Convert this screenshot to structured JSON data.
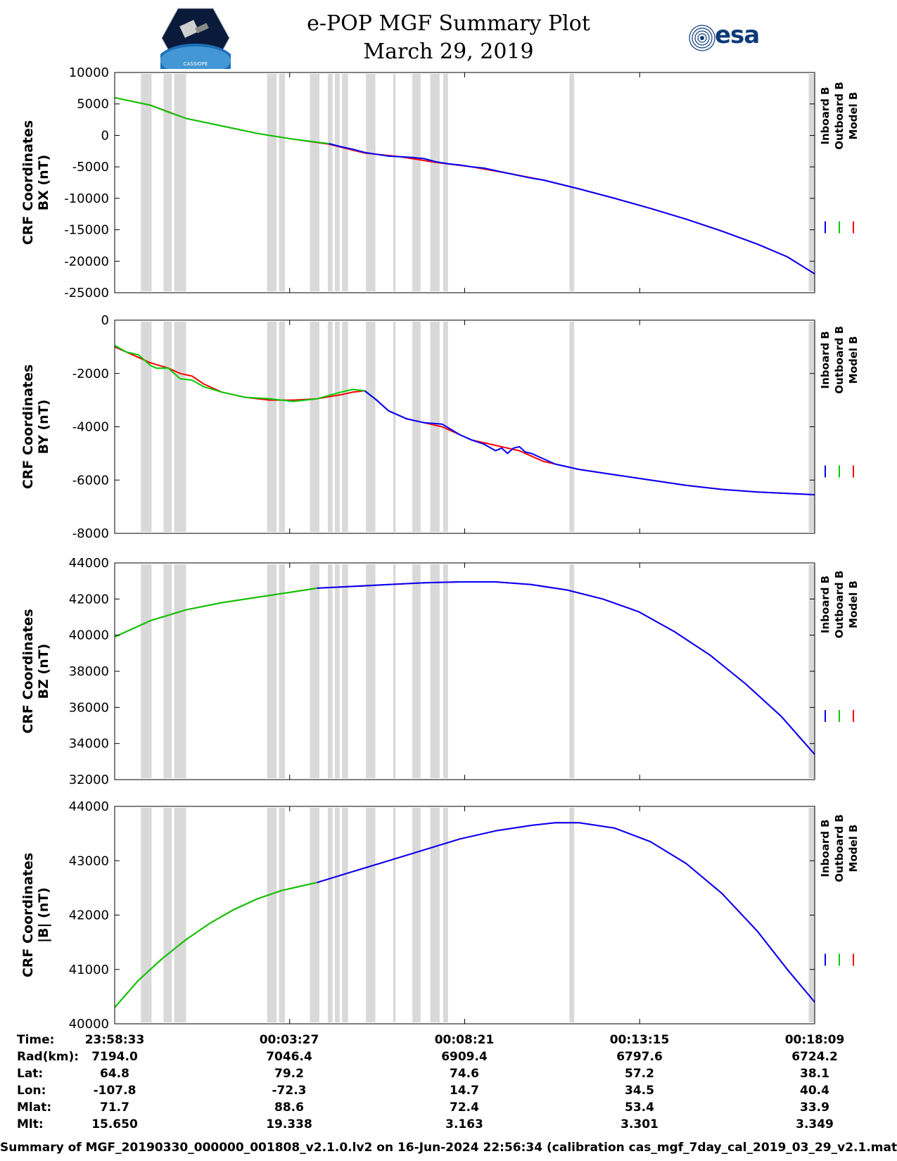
{
  "header": {
    "title_line1": "e-POP MGF Summary Plot",
    "title_line2": "March 29, 2019",
    "esa_logo_text": "esa",
    "left_logo_text": "CASSIOPE"
  },
  "colors": {
    "inboard": "#0000ff",
    "outboard": "#00cc00",
    "model": "#ff0000",
    "gap": "#d9d9d9"
  },
  "legend": {
    "inboard": "Inboard B",
    "outboard": "Outboard B",
    "model": "Model B"
  },
  "info": {
    "labels": [
      "Time:",
      "Rad(km):",
      "Lat:",
      "Lon:",
      "Mlat:",
      "Mlt:"
    ],
    "columns": [
      {
        "time": "23:58:33",
        "rad": "7194.0",
        "lat": "64.8",
        "lon": "-107.8",
        "mlat": "71.7",
        "mlt": "15.650"
      },
      {
        "time": "00:03:27",
        "rad": "7046.4",
        "lat": "79.2",
        "lon": "-72.3",
        "mlat": "88.6",
        "mlt": "19.338"
      },
      {
        "time": "00:08:21",
        "rad": "6909.4",
        "lat": "74.6",
        "lon": "14.7",
        "mlat": "72.4",
        "mlt": "3.163"
      },
      {
        "time": "00:13:15",
        "rad": "6797.6",
        "lat": "57.2",
        "lon": "34.5",
        "mlat": "53.4",
        "mlt": "3.301"
      },
      {
        "time": "00:18:09",
        "rad": "6724.2",
        "lat": "38.1",
        "lon": "40.4",
        "mlat": "33.9",
        "mlt": "3.349"
      }
    ]
  },
  "footer": "Summary of MGF_20190330_000000_001808_v2.1.0.lv2 on 16-Jun-2024 22:56:34 (calibration cas_mgf_7day_cal_2019_03_29_v2.1.mat )",
  "chart_data": [
    {
      "type": "line",
      "ylabel_line1": "CRF Coordinates",
      "ylabel_line2": "BX (nT)",
      "ylim": [
        -25000,
        10000
      ],
      "yticks": [
        -25000,
        -20000,
        -15000,
        -10000,
        -5000,
        0,
        5000,
        10000
      ],
      "xlim_sec": [
        0,
        1176
      ],
      "xticks_sec": [
        294,
        588,
        882
      ],
      "gaps_sec": [
        [
          44,
          62
        ],
        [
          82,
          96
        ],
        [
          100,
          120
        ],
        [
          256,
          272
        ],
        [
          276,
          286
        ],
        [
          328,
          344
        ],
        [
          358,
          366
        ],
        [
          370,
          378
        ],
        [
          382,
          392
        ],
        [
          422,
          438
        ],
        [
          468,
          472
        ],
        [
          500,
          514
        ],
        [
          530,
          546
        ],
        [
          552,
          560
        ],
        [
          764,
          772
        ],
        [
          1166,
          1176
        ]
      ],
      "series": [
        {
          "name": "Model B",
          "x": [
            0,
            60,
            120,
            180,
            240,
            300,
            360,
            420,
            480,
            540,
            600,
            660,
            720,
            780,
            840,
            900,
            960,
            1020,
            1080,
            1130,
            1176
          ],
          "y": [
            6000,
            4800,
            2700,
            1500,
            300,
            -600,
            -1400,
            -2800,
            -3400,
            -4300,
            -5000,
            -6000,
            -7100,
            -8500,
            -10000,
            -11600,
            -13300,
            -15200,
            -17300,
            -19300,
            -22000
          ]
        },
        {
          "name": "Outboard B",
          "x": [
            0,
            60,
            90,
            120,
            180,
            240,
            300,
            360
          ],
          "y": [
            6000,
            4800,
            3700,
            2700,
            1500,
            300,
            -600,
            -1300
          ]
        },
        {
          "name": "Inboard B",
          "x": [
            360,
            380,
            400,
            420,
            440,
            460,
            480,
            500,
            520,
            540,
            560,
            580,
            600,
            620,
            640,
            660,
            680,
            700,
            720,
            780,
            840,
            900,
            960,
            1020,
            1080,
            1130,
            1176
          ],
          "y": [
            -1300,
            -1800,
            -2200,
            -2700,
            -3000,
            -3300,
            -3400,
            -3500,
            -3700,
            -4200,
            -4500,
            -4700,
            -5000,
            -5200,
            -5600,
            -6000,
            -6400,
            -6800,
            -7100,
            -8500,
            -10000,
            -11600,
            -13300,
            -15200,
            -17300,
            -19300,
            -22000
          ]
        }
      ]
    },
    {
      "type": "line",
      "ylabel_line1": "CRF Coordinates",
      "ylabel_line2": "BY (nT)",
      "ylim": [
        -8000,
        0
      ],
      "yticks": [
        -8000,
        -6000,
        -4000,
        -2000,
        0
      ],
      "xlim_sec": [
        0,
        1176
      ],
      "xticks_sec": [
        294,
        588,
        882
      ],
      "gaps_sec": [
        [
          44,
          62
        ],
        [
          82,
          96
        ],
        [
          100,
          120
        ],
        [
          256,
          272
        ],
        [
          276,
          286
        ],
        [
          328,
          344
        ],
        [
          358,
          366
        ],
        [
          370,
          378
        ],
        [
          382,
          392
        ],
        [
          422,
          438
        ],
        [
          468,
          472
        ],
        [
          500,
          514
        ],
        [
          530,
          546
        ],
        [
          552,
          560
        ],
        [
          764,
          772
        ],
        [
          1166,
          1176
        ]
      ],
      "series": [
        {
          "name": "Model B",
          "x": [
            0,
            30,
            60,
            90,
            110,
            130,
            150,
            180,
            220,
            260,
            300,
            340,
            380,
            400,
            420,
            440,
            460,
            490,
            520,
            550,
            580,
            600,
            640,
            680,
            720,
            780,
            840,
            900,
            960,
            1020,
            1080,
            1130,
            1176
          ],
          "y": [
            -1000,
            -1300,
            -1600,
            -1800,
            -2000,
            -2100,
            -2400,
            -2700,
            -2900,
            -3000,
            -3000,
            -2950,
            -2800,
            -2700,
            -2650,
            -3000,
            -3400,
            -3700,
            -3850,
            -4000,
            -4300,
            -4500,
            -4700,
            -4900,
            -5300,
            -5600,
            -5800,
            -6000,
            -6200,
            -6350,
            -6450,
            -6500,
            -6550
          ]
        },
        {
          "name": "Outboard B",
          "x": [
            0,
            20,
            40,
            60,
            70,
            90,
            100,
            110,
            130,
            150,
            180,
            220,
            260,
            300,
            340,
            380,
            400,
            420,
            440,
            460
          ],
          "y": [
            -950,
            -1200,
            -1300,
            -1700,
            -1800,
            -1800,
            -2000,
            -2200,
            -2250,
            -2500,
            -2700,
            -2900,
            -2950,
            -3050,
            -2950,
            -2700,
            -2600,
            -2650,
            -3000,
            -3400
          ]
        },
        {
          "name": "Inboard B",
          "x": [
            420,
            440,
            460,
            490,
            520,
            550,
            580,
            600,
            620,
            640,
            650,
            660,
            670,
            680,
            690,
            700,
            720,
            740,
            780,
            840,
            900,
            960,
            1020,
            1080,
            1130,
            1176
          ],
          "y": [
            -2650,
            -3000,
            -3400,
            -3700,
            -3850,
            -3900,
            -4300,
            -4500,
            -4650,
            -4900,
            -4800,
            -5000,
            -4800,
            -4750,
            -4950,
            -5000,
            -5200,
            -5400,
            -5600,
            -5800,
            -6000,
            -6200,
            -6350,
            -6450,
            -6500,
            -6550
          ]
        }
      ]
    },
    {
      "type": "line",
      "ylabel_line1": "CRF Coordinates",
      "ylabel_line2": "BZ (nT)",
      "ylim": [
        32000,
        44000
      ],
      "yticks": [
        32000,
        34000,
        36000,
        38000,
        40000,
        42000,
        44000
      ],
      "xlim_sec": [
        0,
        1176
      ],
      "xticks_sec": [
        294,
        588,
        882
      ],
      "gaps_sec": [
        [
          44,
          62
        ],
        [
          82,
          96
        ],
        [
          100,
          120
        ],
        [
          256,
          272
        ],
        [
          276,
          286
        ],
        [
          328,
          344
        ],
        [
          358,
          366
        ],
        [
          370,
          378
        ],
        [
          382,
          392
        ],
        [
          422,
          438
        ],
        [
          468,
          472
        ],
        [
          500,
          514
        ],
        [
          530,
          546
        ],
        [
          552,
          560
        ],
        [
          764,
          772
        ],
        [
          1166,
          1176
        ]
      ],
      "series": [
        {
          "name": "Model B",
          "x": [
            0,
            60,
            120,
            180,
            240,
            300,
            340,
            400,
            460,
            520,
            580,
            640,
            700,
            760,
            820,
            880,
            940,
            1000,
            1060,
            1120,
            1176
          ],
          "y": [
            39900,
            40800,
            41400,
            41800,
            42100,
            42400,
            42600,
            42700,
            42800,
            42900,
            42950,
            42950,
            42800,
            42500,
            42000,
            41300,
            40200,
            38900,
            37300,
            35500,
            33400
          ]
        },
        {
          "name": "Outboard B",
          "x": [
            0,
            60,
            120,
            180,
            240,
            300,
            340
          ],
          "y": [
            39900,
            40800,
            41400,
            41800,
            42100,
            42400,
            42600
          ]
        },
        {
          "name": "Inboard B",
          "x": [
            340,
            400,
            460,
            520,
            580,
            640,
            700,
            760,
            820,
            880,
            940,
            1000,
            1060,
            1120,
            1176
          ],
          "y": [
            42600,
            42700,
            42800,
            42900,
            42950,
            42950,
            42800,
            42500,
            42000,
            41300,
            40200,
            38900,
            37300,
            35500,
            33400
          ]
        }
      ]
    },
    {
      "type": "line",
      "ylabel_line1": "CRF Coordinates",
      "ylabel_line2": "|B| (nT)",
      "ylim": [
        40000,
        44000
      ],
      "yticks": [
        40000,
        41000,
        42000,
        43000,
        44000
      ],
      "xlim_sec": [
        0,
        1176
      ],
      "xticks_sec": [
        294,
        588,
        882
      ],
      "gaps_sec": [
        [
          44,
          62
        ],
        [
          82,
          96
        ],
        [
          100,
          120
        ],
        [
          256,
          272
        ],
        [
          276,
          286
        ],
        [
          328,
          344
        ],
        [
          358,
          366
        ],
        [
          370,
          378
        ],
        [
          382,
          392
        ],
        [
          422,
          438
        ],
        [
          468,
          472
        ],
        [
          500,
          514
        ],
        [
          530,
          546
        ],
        [
          552,
          560
        ],
        [
          764,
          772
        ],
        [
          1166,
          1176
        ]
      ],
      "series": [
        {
          "name": "Model B",
          "x": [
            0,
            40,
            80,
            120,
            160,
            200,
            240,
            280,
            320,
            340,
            400,
            460,
            520,
            580,
            640,
            700,
            740,
            780,
            840,
            900,
            960,
            1020,
            1080,
            1130,
            1176
          ],
          "y": [
            40300,
            40800,
            41200,
            41550,
            41850,
            42100,
            42300,
            42450,
            42550,
            42600,
            42800,
            43000,
            43200,
            43400,
            43550,
            43650,
            43700,
            43700,
            43600,
            43350,
            42950,
            42400,
            41700,
            41000,
            40400
          ]
        },
        {
          "name": "Outboard B",
          "x": [
            0,
            40,
            80,
            120,
            160,
            200,
            240,
            280,
            320,
            340
          ],
          "y": [
            40300,
            40800,
            41200,
            41550,
            41850,
            42100,
            42300,
            42450,
            42550,
            42600
          ]
        },
        {
          "name": "Inboard B",
          "x": [
            340,
            400,
            460,
            520,
            580,
            640,
            700,
            740,
            780,
            840,
            900,
            960,
            1020,
            1080,
            1130,
            1176
          ],
          "y": [
            42600,
            42800,
            43000,
            43200,
            43400,
            43550,
            43650,
            43700,
            43700,
            43600,
            43350,
            42950,
            42400,
            41700,
            41000,
            40400
          ]
        }
      ]
    }
  ]
}
